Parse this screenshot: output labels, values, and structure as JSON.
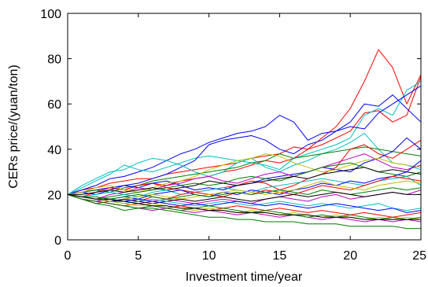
{
  "chart_data": {
    "type": "line",
    "title": "",
    "xlabel": "Investment time/year",
    "ylabel": "CERs price/(yuan/ton)",
    "xlim": [
      0,
      25
    ],
    "ylim": [
      0,
      100
    ],
    "xticks": [
      0,
      5,
      10,
      15,
      20,
      25
    ],
    "yticks": [
      0,
      20,
      40,
      60,
      80,
      100
    ],
    "grid": false,
    "x": [
      0,
      1,
      2,
      3,
      4,
      5,
      6,
      7,
      8,
      9,
      10,
      11,
      12,
      13,
      14,
      15,
      16,
      17,
      18,
      19,
      20,
      21,
      22,
      23,
      24,
      25
    ],
    "series": [
      {
        "color": "#ff0000",
        "values": [
          20,
          21,
          22,
          23,
          22,
          24,
          25,
          24,
          26,
          27,
          28,
          30,
          31,
          33,
          35,
          34,
          36,
          40,
          45,
          50,
          58,
          70,
          84,
          76,
          60,
          73
        ]
      },
      {
        "color": "#ff0000",
        "values": [
          20,
          22,
          23,
          25,
          26,
          27,
          27,
          29,
          30,
          31,
          32,
          33,
          34,
          36,
          37,
          38,
          41,
          40,
          42,
          45,
          48,
          56,
          57,
          52,
          55,
          72
        ]
      },
      {
        "color": "#0000ff",
        "values": [
          20,
          22,
          24,
          27,
          28,
          30,
          32,
          35,
          38,
          40,
          43,
          45,
          47,
          48,
          50,
          55,
          52,
          44,
          47,
          48,
          52,
          60,
          59,
          64,
          58,
          52
        ]
      },
      {
        "color": "#00bfbf",
        "values": [
          20,
          23,
          26,
          29,
          33,
          31,
          30,
          32,
          34,
          36,
          37,
          36,
          35,
          34,
          33,
          31,
          36,
          38,
          40,
          42,
          45,
          55,
          58,
          55,
          66,
          70
        ]
      },
      {
        "color": "#0000ff",
        "values": [
          20,
          21,
          22,
          23,
          24,
          25,
          27,
          29,
          32,
          35,
          42,
          44,
          45,
          46,
          44,
          40,
          38,
          42,
          44,
          48,
          50,
          49,
          56,
          60,
          64,
          68
        ]
      },
      {
        "color": "#00bfbf",
        "values": [
          20,
          24,
          27,
          30,
          31,
          34,
          36,
          35,
          33,
          30,
          28,
          30,
          34,
          36,
          32,
          30,
          33,
          35,
          38,
          40,
          43,
          47,
          40,
          34,
          33,
          31
        ]
      },
      {
        "color": "#007f00",
        "values": [
          20,
          21,
          22,
          21,
          23,
          24,
          26,
          27,
          28,
          29,
          30,
          31,
          32,
          34,
          35,
          38,
          36,
          37,
          38,
          39,
          40,
          41,
          40,
          39,
          38,
          37
        ]
      },
      {
        "color": "#ff0000",
        "values": [
          20,
          19,
          21,
          23,
          22,
          24,
          25,
          23,
          22,
          21,
          22,
          23,
          24,
          26,
          25,
          22,
          24,
          27,
          29,
          32,
          40,
          42,
          38,
          36,
          40,
          44
        ]
      },
      {
        "color": "#0000ff",
        "values": [
          20,
          21,
          20,
          22,
          24,
          23,
          25,
          26,
          24,
          22,
          23,
          22,
          24,
          25,
          27,
          28,
          29,
          30,
          32,
          31,
          30,
          34,
          36,
          39,
          45,
          40
        ]
      },
      {
        "color": "#bf00bf",
        "values": [
          20,
          19,
          18,
          20,
          21,
          23,
          22,
          24,
          25,
          27,
          28,
          26,
          25,
          27,
          29,
          30,
          28,
          30,
          32,
          34,
          36,
          38,
          35,
          32,
          31,
          33
        ]
      },
      {
        "color": "#bfbf00",
        "values": [
          20,
          21,
          23,
          24,
          22,
          21,
          23,
          25,
          26,
          28,
          31,
          33,
          35,
          36,
          38,
          37,
          34,
          32,
          30,
          31,
          33,
          35,
          36,
          34,
          33,
          32
        ]
      },
      {
        "color": "#007f00",
        "values": [
          20,
          19,
          18,
          19,
          20,
          21,
          22,
          23,
          24,
          25,
          24,
          25,
          27,
          28,
          27,
          26,
          28,
          30,
          32,
          33,
          34,
          32,
          30,
          29,
          28,
          30
        ]
      },
      {
        "color": "#000000",
        "values": [
          20,
          20,
          21,
          22,
          21,
          22,
          23,
          22,
          23,
          24,
          26,
          25,
          24,
          25,
          26,
          27,
          28,
          27,
          29,
          30,
          31,
          32,
          30,
          31,
          30,
          29
        ]
      },
      {
        "color": "#00bfbf",
        "values": [
          20,
          19,
          20,
          21,
          20,
          19,
          21,
          22,
          20,
          21,
          22,
          23,
          22,
          21,
          23,
          24,
          25,
          26,
          27,
          26,
          25,
          24,
          26,
          27,
          28,
          24
        ]
      },
      {
        "color": "#0000ff",
        "values": [
          20,
          18,
          17,
          18,
          19,
          18,
          20,
          21,
          22,
          20,
          19,
          21,
          20,
          22,
          21,
          20,
          22,
          23,
          25,
          24,
          26,
          25,
          27,
          28,
          30,
          35
        ]
      },
      {
        "color": "#ff0000",
        "values": [
          20,
          18,
          16,
          17,
          18,
          17,
          19,
          18,
          20,
          21,
          20,
          19,
          21,
          20,
          22,
          21,
          20,
          22,
          24,
          23,
          22,
          24,
          26,
          28,
          27,
          26
        ]
      },
      {
        "color": "#bfbf00",
        "values": [
          20,
          19,
          18,
          17,
          18,
          19,
          20,
          19,
          18,
          19,
          20,
          21,
          22,
          21,
          20,
          21,
          22,
          24,
          26,
          24,
          23,
          22,
          24,
          25,
          26,
          25
        ]
      },
      {
        "color": "#007f00",
        "values": [
          20,
          19,
          19,
          18,
          19,
          20,
          19,
          18,
          19,
          20,
          19,
          20,
          21,
          20,
          21,
          22,
          21,
          20,
          22,
          21,
          20,
          21,
          22,
          23,
          22,
          23
        ]
      },
      {
        "color": "#bf00bf",
        "values": [
          20,
          18,
          17,
          18,
          17,
          16,
          17,
          18,
          17,
          16,
          17,
          18,
          17,
          16,
          18,
          19,
          18,
          17,
          19,
          20,
          18,
          19,
          20,
          21,
          20,
          22
        ]
      },
      {
        "color": "#000000",
        "values": [
          20,
          19,
          18,
          17,
          18,
          17,
          16,
          17,
          18,
          17,
          18,
          19,
          18,
          17,
          18,
          19,
          20,
          19,
          20,
          21,
          20,
          19,
          20,
          21,
          20,
          20
        ]
      },
      {
        "color": "#00bfbf",
        "values": [
          20,
          19,
          18,
          17,
          16,
          17,
          18,
          17,
          16,
          15,
          16,
          17,
          16,
          15,
          16,
          17,
          16,
          15,
          16,
          15,
          14,
          15,
          16,
          14,
          13,
          14
        ]
      },
      {
        "color": "#0000ff",
        "values": [
          20,
          19,
          18,
          17,
          17,
          18,
          17,
          16,
          15,
          16,
          15,
          16,
          17,
          16,
          15,
          16,
          15,
          14,
          15,
          16,
          15,
          14,
          13,
          14,
          12,
          13
        ]
      },
      {
        "color": "#ff0000",
        "values": [
          20,
          18,
          17,
          16,
          15,
          16,
          15,
          14,
          15,
          14,
          13,
          14,
          15,
          14,
          13,
          14,
          13,
          12,
          13,
          12,
          11,
          12,
          11,
          10,
          11,
          12
        ]
      },
      {
        "color": "#bfbf00",
        "values": [
          20,
          19,
          18,
          17,
          16,
          15,
          16,
          15,
          14,
          13,
          14,
          13,
          12,
          13,
          12,
          11,
          12,
          11,
          10,
          11,
          10,
          9,
          10,
          9,
          10,
          9
        ]
      },
      {
        "color": "#bf00bf",
        "values": [
          20,
          18,
          17,
          16,
          15,
          14,
          13,
          14,
          13,
          12,
          13,
          12,
          11,
          12,
          11,
          10,
          11,
          10,
          9,
          10,
          9,
          8,
          9,
          8,
          9,
          8
        ]
      },
      {
        "color": "#007f00",
        "values": [
          20,
          18,
          17,
          16,
          15,
          14,
          14,
          13,
          12,
          11,
          10,
          10,
          9,
          9,
          8,
          8,
          8,
          7,
          7,
          7,
          6,
          6,
          6,
          6,
          5,
          5
        ]
      },
      {
        "color": "#007f00",
        "values": [
          20,
          18,
          16,
          15,
          13,
          14,
          15,
          14,
          13,
          14,
          15,
          14,
          13,
          12,
          13,
          12,
          11,
          10,
          11,
          10,
          11,
          10,
          9,
          10,
          9,
          10
        ]
      },
      {
        "color": "#000000",
        "values": [
          20,
          19,
          18,
          18,
          17,
          16,
          15,
          15,
          14,
          14,
          13,
          13,
          12,
          12,
          12,
          11,
          11,
          11,
          10,
          10,
          10,
          9,
          9,
          9,
          9,
          9
        ]
      }
    ]
  }
}
